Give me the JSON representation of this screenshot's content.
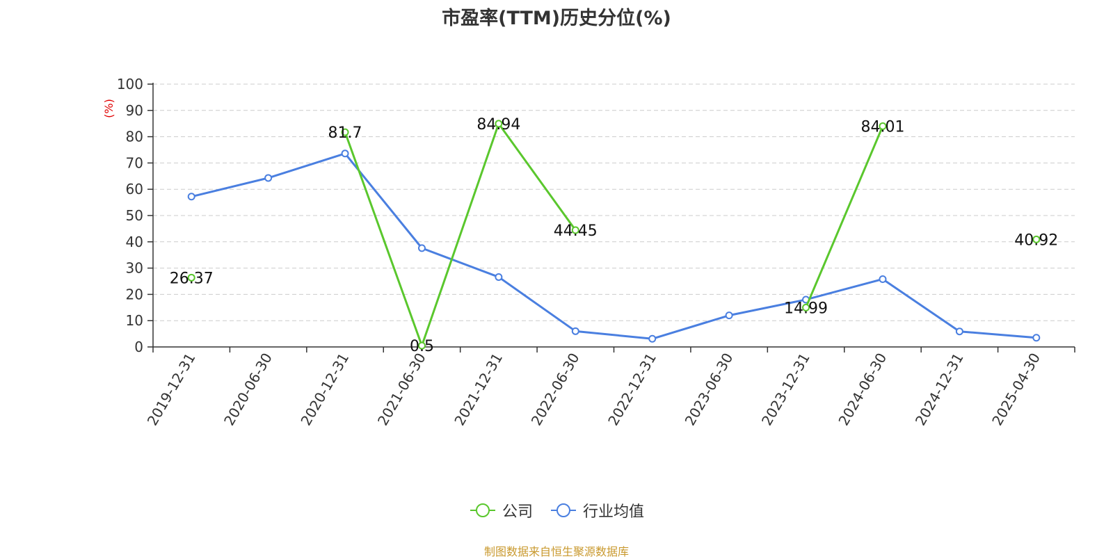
{
  "chart_data": {
    "type": "line",
    "title": "市盈率(TTM)历史分位(%)",
    "ylabel": "(%)",
    "xlabel": "",
    "ylim": [
      0,
      100
    ],
    "yticks": [
      0,
      10,
      20,
      30,
      40,
      50,
      60,
      70,
      80,
      90,
      100
    ],
    "grid": true,
    "legend_position": "bottom",
    "categories": [
      "2019-12-31",
      "2020-06-30",
      "2020-12-31",
      "2021-06-30",
      "2021-12-31",
      "2022-06-30",
      "2022-12-31",
      "2023-06-30",
      "2023-12-31",
      "2024-06-30",
      "2024-12-31",
      "2025-04-30"
    ],
    "series": [
      {
        "name": "公司",
        "color": "#5ac72d",
        "values": [
          26.37,
          null,
          81.7,
          0.5,
          84.94,
          44.45,
          null,
          null,
          14.99,
          84.01,
          null,
          40.92
        ],
        "labels": [
          "26.37",
          "",
          "81.7",
          "0.5",
          "84.94",
          "44.45",
          "",
          "",
          "14.99",
          "84.01",
          "",
          "40.92"
        ]
      },
      {
        "name": "行业均值",
        "color": "#4a7fe0",
        "values": [
          57.2,
          64.3,
          73.6,
          37.6,
          26.6,
          6.0,
          3.1,
          12.0,
          18.0,
          25.8,
          5.9,
          3.5
        ]
      }
    ]
  },
  "source_note": "制图数据来自恒生聚源数据库"
}
